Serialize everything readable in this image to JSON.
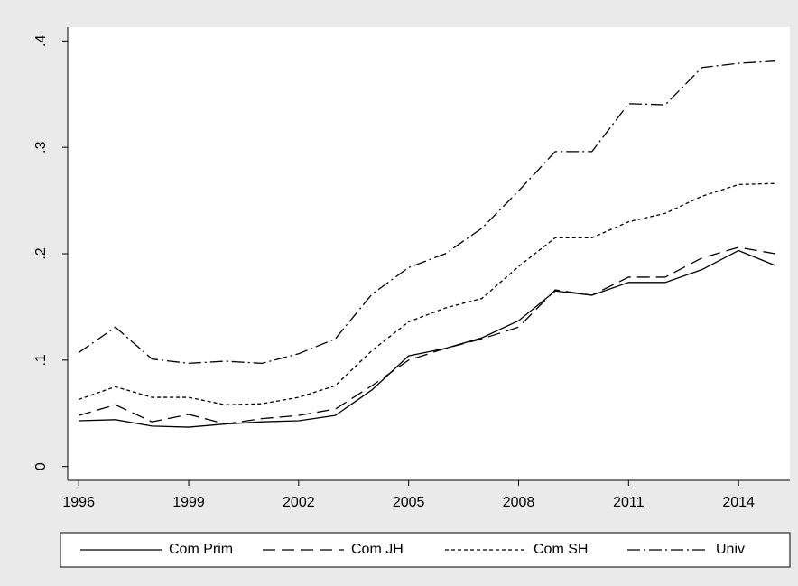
{
  "chart_data": {
    "type": "line",
    "x": [
      1996,
      1997,
      1998,
      1999,
      2000,
      2001,
      2002,
      2003,
      2004,
      2005,
      2006,
      2007,
      2008,
      2009,
      2010,
      2011,
      2012,
      2013,
      2014,
      2015
    ],
    "series": [
      {
        "name": "Com Prim",
        "color": "#000000",
        "dash": "solid",
        "values": [
          0.043,
          0.044,
          0.038,
          0.037,
          0.04,
          0.042,
          0.043,
          0.048,
          0.072,
          0.104,
          0.111,
          0.121,
          0.137,
          0.165,
          0.161,
          0.173,
          0.173,
          0.185,
          0.203,
          0.189
        ]
      },
      {
        "name": "Com JH",
        "color": "#000000",
        "dash": "longdash",
        "values": [
          0.048,
          0.058,
          0.042,
          0.049,
          0.04,
          0.045,
          0.048,
          0.054,
          0.076,
          0.1,
          0.111,
          0.12,
          0.131,
          0.166,
          0.161,
          0.178,
          0.178,
          0.196,
          0.206,
          0.2
        ]
      },
      {
        "name": "Com SH",
        "color": "#000000",
        "dash": "shortdash",
        "values": [
          0.063,
          0.075,
          0.065,
          0.065,
          0.058,
          0.059,
          0.065,
          0.076,
          0.109,
          0.136,
          0.149,
          0.158,
          0.188,
          0.215,
          0.215,
          0.23,
          0.238,
          0.254,
          0.265,
          0.266
        ]
      },
      {
        "name": "Univ",
        "color": "#000000",
        "dash": "dashdot",
        "values": [
          0.107,
          0.131,
          0.101,
          0.097,
          0.099,
          0.097,
          0.106,
          0.12,
          0.162,
          0.187,
          0.2,
          0.224,
          0.259,
          0.296,
          0.296,
          0.341,
          0.34,
          0.375,
          0.379,
          0.381
        ]
      }
    ],
    "xlim": [
      1995.7,
      2015.4
    ],
    "ylim": [
      -0.013,
      0.413
    ],
    "xticks": [
      1996,
      1999,
      2002,
      2005,
      2008,
      2011,
      2014
    ],
    "yticks": [
      0,
      {
        "value": 0.1,
        "label": ".1"
      },
      {
        "value": 0.2,
        "label": ".2"
      },
      {
        "value": 0.3,
        "label": ".3"
      },
      {
        "value": 0.4,
        "label": ".4"
      }
    ],
    "legend": "bottom"
  }
}
